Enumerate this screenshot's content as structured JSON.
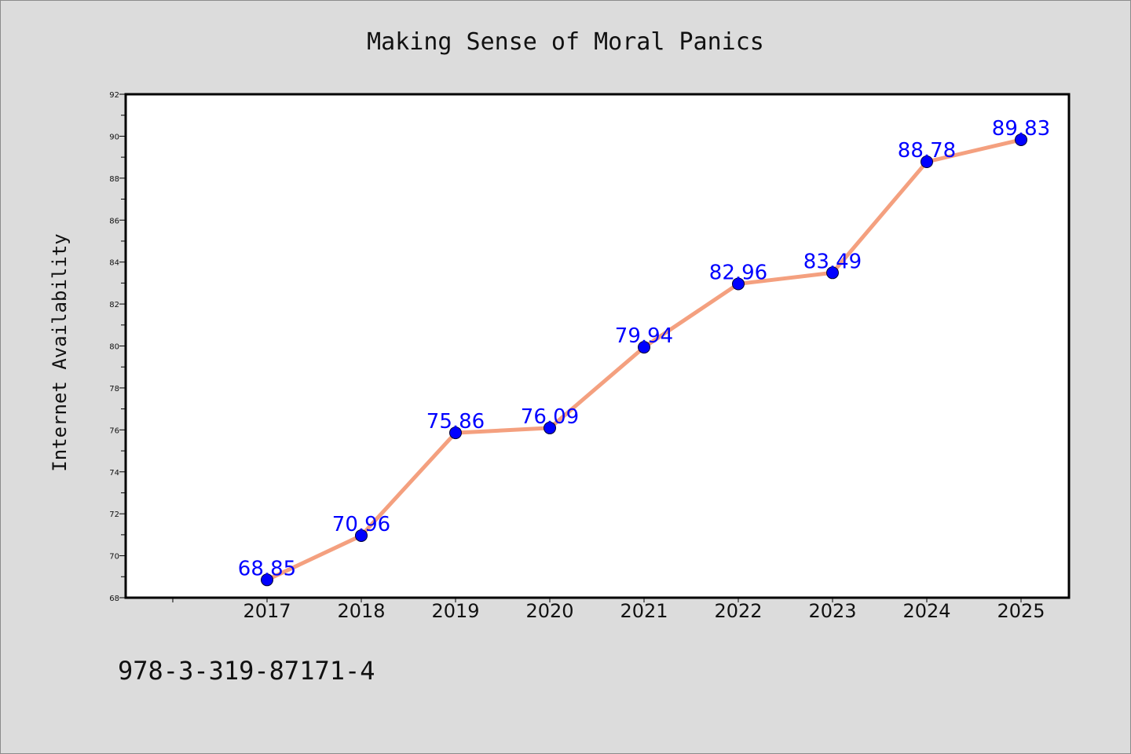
{
  "chart_data": {
    "type": "line",
    "title": "Making Sense of Moral Panics",
    "xlabel": "",
    "ylabel": "Internet Availability",
    "x": [
      "2017",
      "2018",
      "2019",
      "2020",
      "2021",
      "2022",
      "2023",
      "2024",
      "2025"
    ],
    "series": [
      {
        "values": [
          68.85,
          70.96,
          75.86,
          76.09,
          79.94,
          82.96,
          83.49,
          88.78,
          89.83
        ],
        "labels": [
          "68.85",
          "70.96",
          "75.86",
          "76.09",
          "79.94",
          "82.96",
          "83.49",
          "88.78",
          "89.83"
        ]
      }
    ],
    "ylim": [
      68,
      92
    ],
    "yticks": [
      "68",
      "70",
      "72",
      "74",
      "76",
      "78",
      "80",
      "82",
      "84",
      "86",
      "88",
      "90",
      "92"
    ],
    "grid": false,
    "legend": "none",
    "colors": {
      "line": "#f4a07f",
      "marker": "#0000ff",
      "data_label": "#0000ff",
      "background": "#dcdcdc",
      "plot_background": "#ffffff"
    }
  },
  "footer": {
    "isbn": "978-3-319-87171-4"
  }
}
